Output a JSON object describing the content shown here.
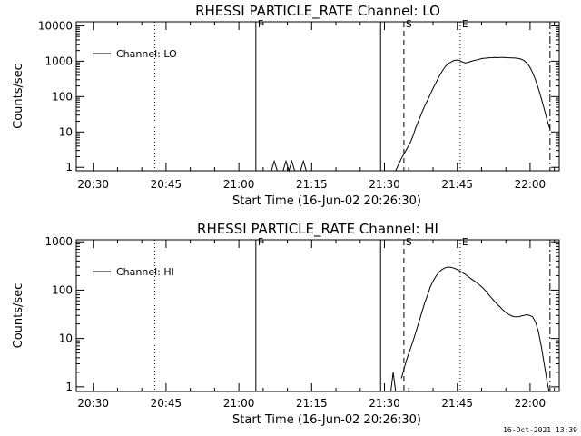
{
  "footer_timestamp": "16-Oct-2021 13:39",
  "chart_data": [
    {
      "type": "line",
      "title": "RHESSI PARTICLE_RATE Channel: LO",
      "xlabel": "Start Time (16-Jun-02 20:26:30)",
      "ylabel": "Counts/sec",
      "y_scale": "log",
      "xlim_min_since_start": [
        0,
        99.5
      ],
      "ylim": [
        0.8,
        13000
      ],
      "x_ticks": [
        {
          "label": "20:30",
          "min": 3.5
        },
        {
          "label": "20:45",
          "min": 18.5
        },
        {
          "label": "21:00",
          "min": 33.5
        },
        {
          "label": "21:15",
          "min": 48.5
        },
        {
          "label": "21:30",
          "min": 63.5
        },
        {
          "label": "21:45",
          "min": 78.5
        },
        {
          "label": "22:00",
          "min": 93.5
        }
      ],
      "y_ticks": [
        {
          "label": "1",
          "v": 1
        },
        {
          "label": "10",
          "v": 10
        },
        {
          "label": "100",
          "v": 100
        },
        {
          "label": "1000",
          "v": 1000
        },
        {
          "label": "10000",
          "v": 10000
        }
      ],
      "legend": {
        "label": "Channel: LO",
        "position": "top-left"
      },
      "markers": [
        {
          "label": "",
          "min": 0,
          "style": "dotted"
        },
        {
          "label": "",
          "min": 16.2,
          "style": "dotted"
        },
        {
          "label": "F",
          "min": 37.0,
          "style": "solid"
        },
        {
          "label": "",
          "min": 62.7,
          "style": "solid"
        },
        {
          "label": "S",
          "min": 67.5,
          "style": "dashed"
        },
        {
          "label": "E",
          "min": 79.1,
          "style": "dotted"
        },
        {
          "label": "",
          "min": 97.6,
          "style": "dashdot"
        }
      ],
      "series": [
        {
          "name": "Channel: LO",
          "segments": [
            [
              [
                40.2,
                0.8
              ],
              [
                40.8,
                1.5
              ],
              [
                41.4,
                0.8
              ]
            ],
            [
              [
                42.6,
                0.8
              ],
              [
                43.2,
                1.5
              ],
              [
                43.8,
                0.8
              ],
              [
                44.4,
                1.5
              ],
              [
                45.0,
                0.8
              ]
            ],
            [
              [
                46.2,
                0.8
              ],
              [
                46.8,
                1.5
              ],
              [
                47.4,
                0.8
              ]
            ],
            [
              [
                65.8,
                0.8
              ],
              [
                66.4,
                1.2
              ],
              [
                67.0,
                1.8
              ],
              [
                67.6,
                2.5
              ],
              [
                68.2,
                3.5
              ],
              [
                68.8,
                5
              ],
              [
                69.4,
                8
              ],
              [
                70.0,
                14
              ],
              [
                70.6,
                22
              ],
              [
                71.2,
                35
              ],
              [
                71.8,
                55
              ],
              [
                72.4,
                80
              ],
              [
                73.0,
                120
              ],
              [
                73.6,
                180
              ],
              [
                74.2,
                260
              ],
              [
                74.8,
                380
              ],
              [
                75.4,
                520
              ],
              [
                76.0,
                700
              ],
              [
                76.6,
                850
              ],
              [
                77.2,
                950
              ],
              [
                77.8,
                1050
              ],
              [
                78.4,
                1080
              ],
              [
                79.0,
                1050
              ],
              [
                79.6,
                950
              ],
              [
                80.2,
                900
              ],
              [
                80.8,
                930
              ],
              [
                81.4,
                1000
              ],
              [
                82.0,
                1050
              ],
              [
                82.6,
                1100
              ],
              [
                83.2,
                1150
              ],
              [
                83.8,
                1200
              ],
              [
                84.4,
                1220
              ],
              [
                85.0,
                1250
              ],
              [
                85.6,
                1260
              ],
              [
                86.2,
                1270
              ],
              [
                86.8,
                1260
              ],
              [
                87.4,
                1280
              ],
              [
                88.0,
                1270
              ],
              [
                88.6,
                1260
              ],
              [
                89.2,
                1250
              ],
              [
                89.8,
                1240
              ],
              [
                90.4,
                1230
              ],
              [
                91.0,
                1200
              ],
              [
                91.6,
                1150
              ],
              [
                92.2,
                1050
              ],
              [
                92.8,
                900
              ],
              [
                93.4,
                700
              ],
              [
                94.0,
                480
              ],
              [
                94.6,
                300
              ],
              [
                95.2,
                170
              ],
              [
                95.8,
                90
              ],
              [
                96.4,
                45
              ],
              [
                97.0,
                22
              ],
              [
                97.6,
                12
              ]
            ]
          ]
        }
      ]
    },
    {
      "type": "line",
      "title": "RHESSI PARTICLE_RATE Channel: HI",
      "xlabel": "Start Time (16-Jun-02 20:26:30)",
      "ylabel": "Counts/sec",
      "y_scale": "log",
      "xlim_min_since_start": [
        0,
        99.5
      ],
      "ylim": [
        0.8,
        1100
      ],
      "x_ticks": [
        {
          "label": "20:30",
          "min": 3.5
        },
        {
          "label": "20:45",
          "min": 18.5
        },
        {
          "label": "21:00",
          "min": 33.5
        },
        {
          "label": "21:15",
          "min": 48.5
        },
        {
          "label": "21:30",
          "min": 63.5
        },
        {
          "label": "21:45",
          "min": 78.5
        },
        {
          "label": "22:00",
          "min": 93.5
        }
      ],
      "y_ticks": [
        {
          "label": "1",
          "v": 1
        },
        {
          "label": "10",
          "v": 10
        },
        {
          "label": "100",
          "v": 100
        },
        {
          "label": "1000",
          "v": 1000
        }
      ],
      "legend": {
        "label": "Channel: HI",
        "position": "top-left"
      },
      "markers": [
        {
          "label": "",
          "min": 0,
          "style": "dotted"
        },
        {
          "label": "",
          "min": 16.2,
          "style": "dotted"
        },
        {
          "label": "F",
          "min": 37.0,
          "style": "solid"
        },
        {
          "label": "",
          "min": 62.7,
          "style": "solid"
        },
        {
          "label": "S",
          "min": 67.5,
          "style": "dashed"
        },
        {
          "label": "E",
          "min": 79.1,
          "style": "dotted"
        },
        {
          "label": "",
          "min": 97.6,
          "style": "dashdot"
        }
      ],
      "series": [
        {
          "name": "Channel: HI",
          "segments": [
            [
              [
                64.8,
                0.8
              ],
              [
                65.3,
                2
              ],
              [
                65.8,
                0.8
              ]
            ],
            [
              [
                67.0,
                1.5
              ],
              [
                67.6,
                2.5
              ],
              [
                68.2,
                4
              ],
              [
                68.8,
                6
              ],
              [
                69.4,
                9
              ],
              [
                70.0,
                14
              ],
              [
                70.6,
                22
              ],
              [
                71.2,
                35
              ],
              [
                71.8,
                55
              ],
              [
                72.4,
                80
              ],
              [
                73.0,
                120
              ],
              [
                73.6,
                160
              ],
              [
                74.2,
                200
              ],
              [
                74.8,
                240
              ],
              [
                75.4,
                270
              ],
              [
                76.0,
                290
              ],
              [
                76.6,
                300
              ],
              [
                77.2,
                295
              ],
              [
                77.8,
                285
              ],
              [
                78.4,
                270
              ],
              [
                79.0,
                250
              ],
              [
                79.6,
                230
              ],
              [
                80.2,
                210
              ],
              [
                80.8,
                190
              ],
              [
                81.4,
                170
              ],
              [
                82.0,
                155
              ],
              [
                82.6,
                140
              ],
              [
                83.2,
                125
              ],
              [
                83.8,
                110
              ],
              [
                84.4,
                95
              ],
              [
                85.0,
                80
              ],
              [
                85.6,
                68
              ],
              [
                86.2,
                58
              ],
              [
                86.8,
                50
              ],
              [
                87.4,
                44
              ],
              [
                88.0,
                38
              ],
              [
                88.6,
                34
              ],
              [
                89.2,
                31
              ],
              [
                89.8,
                29
              ],
              [
                90.4,
                28
              ],
              [
                91.0,
                28
              ],
              [
                91.6,
                29
              ],
              [
                92.2,
                30
              ],
              [
                92.8,
                31
              ],
              [
                93.4,
                30
              ],
              [
                94.0,
                28
              ],
              [
                94.6,
                22
              ],
              [
                95.2,
                14
              ],
              [
                95.8,
                7
              ],
              [
                96.4,
                3
              ],
              [
                97.0,
                1.3
              ],
              [
                97.4,
                0.8
              ]
            ]
          ]
        }
      ]
    }
  ]
}
